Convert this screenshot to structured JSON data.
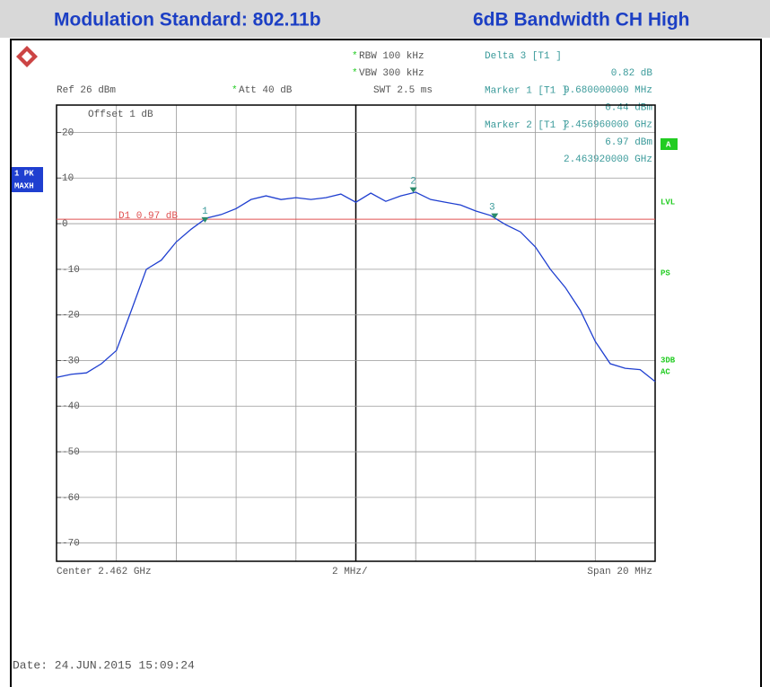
{
  "header": {
    "title": "Modulation Standard: 802.11b",
    "subtitle": "6dB Bandwidth CH High"
  },
  "chart_data": {
    "type": "line",
    "settings": {
      "rbw": "RBW 100 kHz",
      "vbw": "VBW 300 kHz",
      "swt": "SWT 2.5 ms",
      "ref": "Ref  26 dBm",
      "att": "Att  40 dB",
      "offset": "Offset  1 dB",
      "star": "*"
    },
    "marker_info": [
      [
        "Delta 3 [T1 ]",
        "0.82 dB",
        "9.680000000 MHz"
      ],
      [
        "Marker 1 [T1 ]",
        "0.44 dBm",
        "2.456960000 GHz"
      ],
      [
        "Marker 2 [T1 ]",
        "6.97 dBm",
        "2.463920000 GHz"
      ]
    ],
    "side_labels": {
      "trace": "1 PK",
      "mode": "MAXH",
      "a": "A",
      "lvl": "LVL",
      "ps": "PS",
      "db3": "3DB",
      "ac": "AC"
    },
    "footer": {
      "center": "Center 2.462 GHz",
      "div": "2 MHz/",
      "span": "Span 20 MHz",
      "date": "Date: 24.JUN.2015  15:09:24"
    },
    "xlim": [
      2452,
      2472
    ],
    "ylim": [
      -74,
      26
    ],
    "yticks": [
      20,
      10,
      0,
      -10,
      -20,
      -30,
      -40,
      -50,
      -60,
      -70
    ],
    "grid": true,
    "display_line": {
      "label": "D1 0.97 dB",
      "value": 0.97,
      "color": "#e05050"
    },
    "markers": [
      {
        "label": "1",
        "x": 2456.96,
        "y": 0.44
      },
      {
        "label": "2",
        "x": 2463.92,
        "y": 6.97
      },
      {
        "label": "3",
        "x": 2466.64,
        "y": 1.26
      }
    ],
    "x": [
      2452,
      2452.5,
      2453,
      2453.5,
      2454,
      2454.5,
      2455,
      2455.5,
      2456,
      2456.5,
      2457,
      2457.5,
      2458,
      2458.5,
      2459,
      2459.5,
      2460,
      2460.5,
      2461,
      2461.5,
      2462,
      2462.5,
      2463,
      2463.5,
      2464,
      2464.5,
      2465,
      2465.5,
      2466,
      2466.5,
      2467,
      2467.5,
      2468,
      2468.5,
      2469,
      2469.5,
      2470,
      2470.5,
      2471,
      2471.5,
      2472
    ],
    "series": [
      {
        "name": "1 PK MAXH",
        "color": "#1f3fd0",
        "values": [
          -33.7,
          -33,
          -32.7,
          -30.7,
          -27.8,
          -19,
          -10,
          -8,
          -4,
          -1.2,
          1.2,
          2,
          3.3,
          5.3,
          6.1,
          5.3,
          5.7,
          5.3,
          5.7,
          6.5,
          4.7,
          6.7,
          4.9,
          6.1,
          6.9,
          5.3,
          4.7,
          4.1,
          2.8,
          1.8,
          -0.2,
          -1.8,
          -5.1,
          -10,
          -14,
          -19,
          -25.8,
          -30.7,
          -31.7,
          -32,
          -34.6
        ]
      }
    ]
  }
}
